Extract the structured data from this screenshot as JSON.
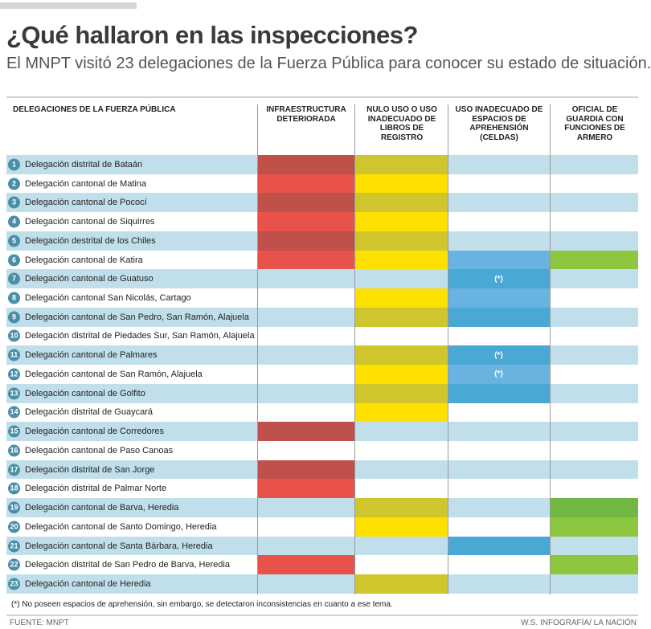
{
  "header": {
    "title": "¿Qué hallaron en las inspecciones?",
    "subtitle": "El MNPT visitó 23 delegaciones de la Fuerza Pública para conocer su estado de situación."
  },
  "columns": {
    "name": "DELEGACIONES DE LA FUERZA PÚBLICA",
    "infra": "INFRAESTRUCTURA DETERIORADA",
    "libros": "NULO USO O USO INADECUADO DE LIBROS DE REGISTRO",
    "celdas": "USO INADECUADO DE ESPACIOS DE APREHENSIÓN (CELDAS)",
    "armero": "OFICIAL DE GUARDIA CON FUNCIONES DE ARMERO"
  },
  "colors": {
    "infra": [
      "#e8524a",
      "#c0504a"
    ],
    "libros": [
      "#fde000",
      "#cfc52d"
    ],
    "celdas": [
      "#68b3e0",
      "#4aa8d4"
    ],
    "armero": [
      "#8dc63f",
      "#70b843"
    ],
    "row_alt": "#c1dfea",
    "number_badge": "#4a8fa8"
  },
  "chart_data": {
    "type": "table",
    "title": "¿Qué hallaron en las inspecciones?",
    "series_keys": [
      "infra",
      "libros",
      "celdas",
      "armero"
    ],
    "rows": [
      {
        "n": "1",
        "name": "Delegación distrital de Bataán",
        "infra": true,
        "libros": true,
        "celdas": false,
        "armero": false
      },
      {
        "n": "2",
        "name": "Delegación cantonal de Matina",
        "infra": true,
        "libros": true,
        "celdas": false,
        "armero": false
      },
      {
        "n": "3",
        "name": "Delegación cantonal de Pococí",
        "infra": true,
        "libros": true,
        "celdas": false,
        "armero": false
      },
      {
        "n": "4",
        "name": "Delegación cantonal de Siquirres",
        "infra": true,
        "libros": true,
        "celdas": false,
        "armero": false
      },
      {
        "n": "5",
        "name": "Delegación destrital de los Chiles",
        "infra": true,
        "libros": true,
        "celdas": false,
        "armero": false
      },
      {
        "n": "6",
        "name": "Delegación cantonal de Katira",
        "infra": true,
        "libros": true,
        "celdas": true,
        "armero": true
      },
      {
        "n": "7",
        "name": "Delegación cantonal de Guatuso",
        "infra": false,
        "libros": false,
        "celdas": "(*)",
        "armero": false
      },
      {
        "n": "8",
        "name": "Delegación cantonal San Nicolás, Cartago",
        "infra": false,
        "libros": true,
        "celdas": true,
        "armero": false
      },
      {
        "n": "9",
        "name": "Delegación cantonal de San Pedro, San Ramón, Alajuela",
        "infra": false,
        "libros": true,
        "celdas": true,
        "armero": false
      },
      {
        "n": "10",
        "name": "Delegación distrital de Piedades Sur, San Ramón, Alajuela",
        "infra": false,
        "libros": false,
        "celdas": false,
        "armero": false
      },
      {
        "n": "11",
        "name": "Delegación cantonal de Palmares",
        "infra": false,
        "libros": true,
        "celdas": "(*)",
        "armero": false
      },
      {
        "n": "12",
        "name": "Delegación cantonal de San Ramón, Alajuela",
        "infra": false,
        "libros": true,
        "celdas": "(*)",
        "armero": false
      },
      {
        "n": "13",
        "name": "Delegación cantonal de Golfito",
        "infra": false,
        "libros": true,
        "celdas": true,
        "armero": false
      },
      {
        "n": "14",
        "name": "Delegación distrital de Guaycará",
        "infra": false,
        "libros": true,
        "celdas": false,
        "armero": false
      },
      {
        "n": "15",
        "name": "Delegación cantonal de Corredores",
        "infra": true,
        "libros": false,
        "celdas": false,
        "armero": false
      },
      {
        "n": "16",
        "name": "Delegación cantonal de Paso Canoas",
        "infra": false,
        "libros": false,
        "celdas": false,
        "armero": false
      },
      {
        "n": "17",
        "name": "Delegación distrital de San Jorge",
        "infra": true,
        "libros": false,
        "celdas": false,
        "armero": false
      },
      {
        "n": "18",
        "name": "Delegación distrital de Palmar Norte",
        "infra": true,
        "libros": false,
        "celdas": false,
        "armero": false
      },
      {
        "n": "19",
        "name": "Delegación cantonal de Barva, Heredia",
        "infra": false,
        "libros": true,
        "celdas": false,
        "armero": true
      },
      {
        "n": "20",
        "name": "Delegación cantonal de Santo Domingo, Heredia",
        "infra": false,
        "libros": true,
        "celdas": false,
        "armero": true
      },
      {
        "n": "21",
        "name": "Delegación cantonal de Santa Bárbara, Heredia",
        "infra": false,
        "libros": false,
        "celdas": true,
        "armero": false
      },
      {
        "n": "22",
        "name": "Delegación distrital de San Pedro de Barva, Heredia",
        "infra": true,
        "libros": false,
        "celdas": false,
        "armero": true
      },
      {
        "n": "23",
        "name": "Delegación cantonal de Heredia",
        "infra": false,
        "libros": true,
        "celdas": false,
        "armero": false
      }
    ]
  },
  "footnote": "(*) No poseen espacios de aprehensión, sin embargo, se detectaron inconsistencias en cuanto a ese tema.",
  "footer": {
    "source": "FUENTE: MNPT",
    "credit": "W.S. INFOGRAFÍA/ LA NACIÓN"
  }
}
